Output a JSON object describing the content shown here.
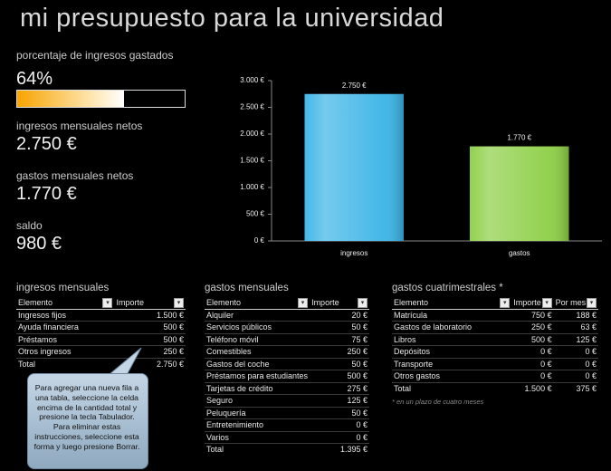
{
  "header": {
    "title": "mi presupuesto para la universidad"
  },
  "gauge": {
    "label": "porcentaje de ingresos gastados",
    "value": 64,
    "value_label": "64%"
  },
  "kpis": [
    {
      "label": "ingresos mensuales netos",
      "value": "2.750 €"
    },
    {
      "label": "gastos mensuales netos",
      "value": "1.770 €"
    },
    {
      "label": "saldo",
      "value": "980 €"
    }
  ],
  "chart_data": {
    "type": "bar",
    "categories": [
      "ingresos",
      "gastos"
    ],
    "values": [
      2750,
      1770
    ],
    "value_labels": [
      "2.750 €",
      "1.770 €"
    ],
    "colors": [
      "#3ab4e6",
      "#8ccf45"
    ],
    "ylim": [
      0,
      3000
    ],
    "yticks": [
      {
        "value": 0,
        "label": "0 €"
      },
      {
        "value": 500,
        "label": "500 €"
      },
      {
        "value": 1000,
        "label": "1.000 €"
      },
      {
        "value": 1500,
        "label": "1.500 €"
      },
      {
        "value": 2000,
        "label": "2.000 €"
      },
      {
        "value": 2500,
        "label": "2.500 €"
      },
      {
        "value": 3000,
        "label": "3.000 €"
      }
    ]
  },
  "tables": [
    {
      "title": "ingresos mensuales",
      "columns": [
        "Elemento",
        "Importe"
      ],
      "rows": [
        [
          "Ingresos fijos",
          "1.500 €"
        ],
        [
          "Ayuda financiera",
          "500 €"
        ],
        [
          "Préstamos",
          "500 €"
        ],
        [
          "Otros ingresos",
          "250 €"
        ]
      ],
      "total": [
        "Total",
        "2.750 €"
      ]
    },
    {
      "title": "gastos mensuales",
      "columns": [
        "Elemento",
        "Importe"
      ],
      "rows": [
        [
          "Alquiler",
          "20 €"
        ],
        [
          "Servicios públicos",
          "50 €"
        ],
        [
          "Teléfono móvil",
          "75 €"
        ],
        [
          "Comestibles",
          "250 €"
        ],
        [
          "Gastos del coche",
          "50 €"
        ],
        [
          "Préstamos para estudiantes",
          "500 €"
        ],
        [
          "Tarjetas de crédito",
          "275 €"
        ],
        [
          "Seguro",
          "125 €"
        ],
        [
          "Peluquería",
          "50 €"
        ],
        [
          "Entretenimiento",
          "0 €"
        ],
        [
          "Varios",
          "0 €"
        ]
      ],
      "total": [
        "Total",
        "1.395 €"
      ]
    },
    {
      "title": "gastos cuatrimestrales *",
      "columns": [
        "Elemento",
        "Importe",
        "Por mes"
      ],
      "rows": [
        [
          "Matrícula",
          "750 €",
          "188 €"
        ],
        [
          "Gastos de laboratorio",
          "250 €",
          "63 €"
        ],
        [
          "Libros",
          "500 €",
          "125 €"
        ],
        [
          "Depósitos",
          "0 €",
          "0 €"
        ],
        [
          "Transporte",
          "0 €",
          "0 €"
        ],
        [
          "Otros gastos",
          "0 €",
          "0 €"
        ]
      ],
      "total": [
        "Total",
        "1.500 €",
        "375 €"
      ],
      "note": "* en un plazo de cuatro meses"
    }
  ],
  "callout": "Para agregar una nueva fila a una tabla, seleccione la celda encima de la cantidad total y presione la tecla Tabulador. Para eliminar estas instrucciones, seleccione esta forma y luego presione Borrar."
}
